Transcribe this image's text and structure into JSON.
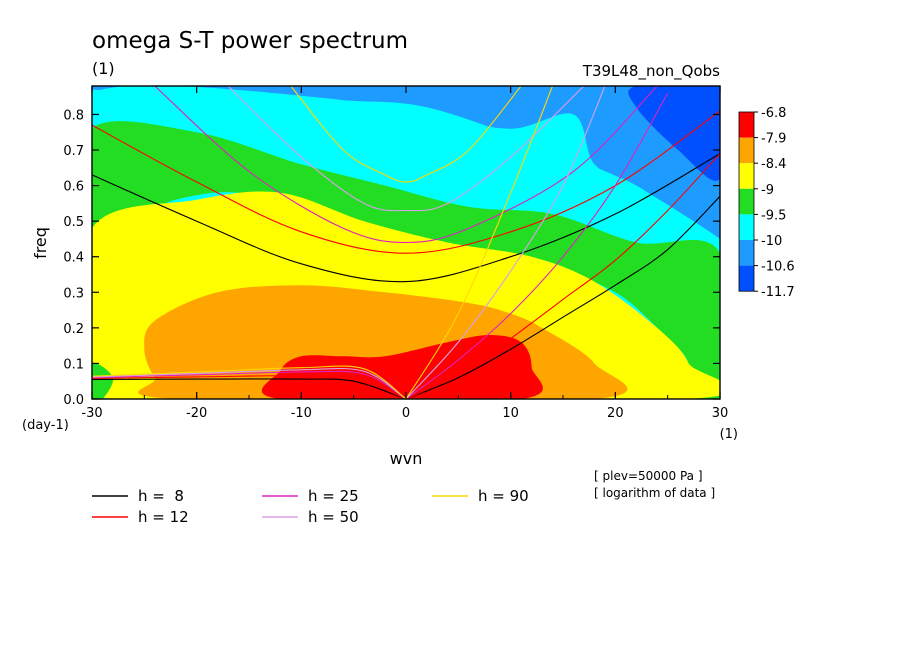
{
  "chart_data": {
    "type": "heatmap",
    "title": "omega S-T power spectrum",
    "subtitle": "(1)",
    "run_label": "T39L48_non_Qobs",
    "xlabel": "wvn",
    "ylabel": "freq",
    "x_unit": "(1)",
    "y_unit": "(day-1)",
    "xlim": [
      -30,
      30
    ],
    "ylim": [
      0.0,
      0.88
    ],
    "x_ticks": [
      "-30",
      "-20",
      "-10",
      "0",
      "10",
      "20",
      "30"
    ],
    "y_ticks": [
      "0.0",
      "0.1",
      "0.2",
      "0.3",
      "0.4",
      "0.5",
      "0.6",
      "0.7",
      "0.8"
    ],
    "colorbar": {
      "labels": [
        "-6.8",
        "-7.9",
        "-8.4",
        "-9",
        "-9.5",
        "-10",
        "-10.6",
        "-11.7"
      ],
      "colors": [
        "#ff0000",
        "#ffa500",
        "#ffff00",
        "#22dd22",
        "#00ffff",
        "#1e9bff",
        "#0050ff"
      ]
    },
    "contour_regions": [
      {
        "color": "#1e9bff",
        "points": [
          [
            -30,
            0.88
          ],
          [
            30,
            0.88
          ],
          [
            30,
            0.45
          ],
          [
            22,
            0.6
          ],
          [
            12,
            0.72
          ],
          [
            2,
            0.82
          ],
          [
            -6,
            0.84
          ],
          [
            -16,
            0.86
          ],
          [
            -30,
            0.87
          ]
        ]
      },
      {
        "color": "#0050ff",
        "points": [
          [
            22,
            0.88
          ],
          [
            30,
            0.88
          ],
          [
            30,
            0.62
          ],
          [
            26,
            0.7
          ],
          [
            22,
            0.82
          ]
        ]
      },
      {
        "color": "#00ffff",
        "points": [
          [
            -30,
            0.86
          ],
          [
            -22,
            0.88
          ],
          [
            -6,
            0.84
          ],
          [
            2,
            0.8
          ],
          [
            10,
            0.76
          ],
          [
            16,
            0.8
          ],
          [
            18,
            0.66
          ],
          [
            22,
            0.6
          ],
          [
            30,
            0.45
          ],
          [
            30,
            0.42
          ],
          [
            20,
            0.47
          ],
          [
            10,
            0.5
          ],
          [
            -5,
            0.6
          ],
          [
            -12,
            0.67
          ],
          [
            -22,
            0.75
          ],
          [
            -30,
            0.76
          ]
        ]
      },
      {
        "color": "#22dd22",
        "points": [
          [
            -30,
            0.76
          ],
          [
            -20,
            0.75
          ],
          [
            -10,
            0.66
          ],
          [
            -2,
            0.6
          ],
          [
            6,
            0.54
          ],
          [
            14,
            0.52
          ],
          [
            22,
            0.44
          ],
          [
            30,
            0.41
          ],
          [
            30,
            0.0
          ],
          [
            26,
            0.0
          ],
          [
            27,
            0.1
          ],
          [
            24,
            0.2
          ],
          [
            20,
            0.3
          ],
          [
            14,
            0.37
          ],
          [
            6,
            0.42
          ],
          [
            -3,
            0.47
          ],
          [
            -10,
            0.53
          ],
          [
            -16,
            0.58
          ],
          [
            -22,
            0.56
          ],
          [
            -30,
            0.48
          ]
        ]
      },
      {
        "color": "#ffff00",
        "points": [
          [
            -30,
            0.48
          ],
          [
            -20,
            0.56
          ],
          [
            -12,
            0.58
          ],
          [
            -4,
            0.5
          ],
          [
            4,
            0.44
          ],
          [
            12,
            0.4
          ],
          [
            18,
            0.33
          ],
          [
            24,
            0.2
          ],
          [
            27,
            0.1
          ],
          [
            27,
            0.0
          ],
          [
            -27,
            0.0
          ],
          [
            -29,
            0.06
          ],
          [
            -30,
            0.1
          ]
        ]
      },
      {
        "color": "#22dd22",
        "points": [
          [
            -30,
            0.1
          ],
          [
            -28,
            0.06
          ],
          [
            -29,
            0.0
          ],
          [
            -30,
            0.0
          ]
        ]
      },
      {
        "color": "#ffa500",
        "points": [
          [
            -24,
            0.22
          ],
          [
            -18,
            0.3
          ],
          [
            -10,
            0.32
          ],
          [
            -2,
            0.3
          ],
          [
            6,
            0.27
          ],
          [
            10,
            0.24
          ],
          [
            13,
            0.2
          ],
          [
            18,
            0.1
          ],
          [
            18,
            0.0
          ],
          [
            -22,
            0.0
          ],
          [
            -24,
            0.06
          ],
          [
            -25,
            0.14
          ]
        ]
      },
      {
        "color": "#ff0000",
        "points": [
          [
            -12,
            0.08
          ],
          [
            -10,
            0.12
          ],
          [
            -6,
            0.12
          ],
          [
            -2,
            0.12
          ],
          [
            4,
            0.16
          ],
          [
            8,
            0.18
          ],
          [
            11,
            0.16
          ],
          [
            12,
            0.09
          ],
          [
            11,
            0.0
          ],
          [
            -12,
            0.0
          ]
        ]
      }
    ],
    "series": [
      {
        "name": "h =  8",
        "color": "#000000",
        "curves": [
          {
            "x": [
              -30,
              -20,
              -10,
              0,
              10,
              20,
              30
            ],
            "y": [
              0.63,
              0.5,
              0.38,
              0.33,
              0.4,
              0.52,
              0.69
            ]
          },
          {
            "x": [
              -30,
              -20,
              -10,
              -5,
              0
            ],
            "y": [
              0.055,
              0.056,
              0.056,
              0.05,
              0.0
            ]
          },
          {
            "x": [
              0,
              5,
              10,
              15,
              20,
              25,
              30
            ],
            "y": [
              0.0,
              0.06,
              0.14,
              0.23,
              0.32,
              0.42,
              0.57
            ]
          }
        ]
      },
      {
        "name": "h = 12",
        "color": "#ff0000",
        "curves": [
          {
            "x": [
              -30,
              -20,
              -10,
              0,
              10,
              20,
              30
            ],
            "y": [
              0.77,
              0.61,
              0.47,
              0.41,
              0.47,
              0.6,
              0.81
            ]
          },
          {
            "x": [
              -30,
              -20,
              -10,
              -5,
              0
            ],
            "y": [
              0.058,
              0.062,
              0.066,
              0.06,
              0.0
            ]
          },
          {
            "x": [
              0,
              5,
              10,
              15,
              20,
              25,
              30
            ],
            "y": [
              0.0,
              0.07,
              0.17,
              0.28,
              0.39,
              0.53,
              0.69
            ]
          }
        ]
      },
      {
        "name": "h = 25",
        "color": "#e020c0",
        "curves": [
          {
            "x": [
              -24,
              -15,
              -6,
              0,
              6,
              16,
              24
            ],
            "y": [
              0.88,
              0.64,
              0.48,
              0.44,
              0.48,
              0.64,
              0.88
            ]
          },
          {
            "x": [
              -30,
              -20,
              -10,
              -4,
              0
            ],
            "y": [
              0.06,
              0.068,
              0.076,
              0.07,
              0.0
            ]
          },
          {
            "x": [
              0,
              5,
              10,
              15,
              20,
              25
            ],
            "y": [
              0.0,
              0.11,
              0.24,
              0.4,
              0.6,
              0.86
            ]
          }
        ]
      },
      {
        "name": "h = 50",
        "color": "#d8a0e8",
        "curves": [
          {
            "x": [
              -17,
              -10,
              -4,
              0,
              4,
              10,
              17
            ],
            "y": [
              0.88,
              0.68,
              0.55,
              0.53,
              0.55,
              0.68,
              0.88
            ]
          },
          {
            "x": [
              -30,
              -20,
              -10,
              -4,
              0
            ],
            "y": [
              0.062,
              0.072,
              0.082,
              0.078,
              0.0
            ]
          },
          {
            "x": [
              0,
              5,
              10,
              15,
              19
            ],
            "y": [
              0.0,
              0.16,
              0.36,
              0.6,
              0.88
            ]
          }
        ]
      },
      {
        "name": "h = 90",
        "color": "#ffd700",
        "curves": [
          {
            "x": [
              -11,
              -6,
              -2,
              0,
              2,
              6,
              11
            ],
            "y": [
              0.88,
              0.7,
              0.63,
              0.61,
              0.63,
              0.7,
              0.88
            ]
          },
          {
            "x": [
              -30,
              -20,
              -10,
              -4,
              0
            ],
            "y": [
              0.064,
              0.076,
              0.088,
              0.085,
              0.0
            ]
          },
          {
            "x": [
              0,
              5,
              10,
              14
            ],
            "y": [
              0.0,
              0.24,
              0.58,
              0.88
            ]
          }
        ]
      }
    ],
    "annotations": [
      "[ plev=50000 Pa ]",
      "[ logarithm of data ]"
    ],
    "legend_placement": "bottom"
  }
}
